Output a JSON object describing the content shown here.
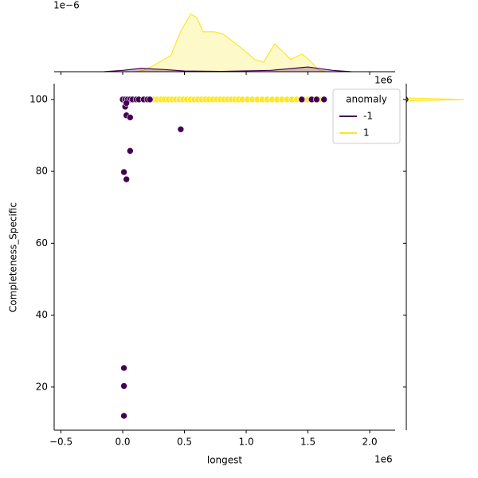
{
  "chart_data": [
    {
      "type": "scatter",
      "x_label": "longest",
      "y_label": "Completeness_Specific",
      "x_offset_label": "1e6",
      "xlim": [
        -555000,
        2206000
      ],
      "ylim": [
        8,
        104.4
      ],
      "xticks": [
        {
          "value": -500000,
          "label": "−0.5"
        },
        {
          "value": 0,
          "label": "0.0"
        },
        {
          "value": 500000,
          "label": "0.5"
        },
        {
          "value": 1000000,
          "label": "1.0"
        },
        {
          "value": 1500000,
          "label": "1.5"
        },
        {
          "value": 2000000,
          "label": "2.0"
        }
      ],
      "yticks": [
        20,
        40,
        60,
        80,
        100
      ],
      "legend": {
        "title": "anomaly",
        "corner": "upper right"
      },
      "series": [
        {
          "name": "1",
          "color": "#fde725",
          "x": [
            30000,
            100000,
            150000,
            180000,
            210000,
            250000,
            280000,
            310000,
            340000,
            370000,
            400000,
            430000,
            460000,
            490000,
            520000,
            550000,
            580000,
            610000,
            640000,
            670000,
            700000,
            730000,
            760000,
            790000,
            820000,
            850000,
            880000,
            910000,
            940000,
            970000,
            1010000,
            1050000,
            1090000,
            1130000,
            1170000,
            1210000,
            1250000,
            1290000,
            1330000,
            1370000,
            1410000,
            1440000,
            1470000,
            1500000,
            1550000,
            1590000
          ],
          "y": [
            100,
            100,
            100,
            100,
            100,
            100,
            100,
            100,
            100,
            100,
            100,
            100,
            100,
            100,
            100,
            100,
            100,
            100,
            100,
            100,
            100,
            100,
            100,
            100,
            100,
            100,
            100,
            100,
            100,
            100,
            100,
            100,
            100,
            100,
            100,
            100,
            100,
            100,
            100,
            100,
            100,
            100,
            100,
            100,
            100,
            100
          ]
        },
        {
          "name": "-1",
          "color": "#440154",
          "x": [
            0,
            20000,
            40000,
            60000,
            80000,
            110000,
            130000,
            170000,
            200000,
            220000,
            1450000,
            1530000,
            1570000,
            1630000,
            20000,
            30000,
            30000,
            60000,
            60000,
            470000,
            10000,
            30000,
            10000,
            10000,
            10000
          ],
          "y": [
            100,
            100,
            100,
            100,
            100,
            100,
            100,
            100,
            100,
            100,
            100,
            100,
            100,
            100,
            98,
            99,
            95.6,
            95,
            85.7,
            91.7,
            79.8,
            77.8,
            25.3,
            20.3,
            12
          ]
        }
      ]
    },
    {
      "type": "kde-top",
      "offset_label": "1e−6",
      "ylim": [
        0,
        1.0
      ],
      "series": [
        {
          "color": "#fde725",
          "x": [
            100000,
            170000,
            260000,
            390000,
            470000,
            550000,
            600000,
            650000,
            740000,
            810000,
            940000,
            1070000,
            1140000,
            1230000,
            1300000,
            1360000,
            1450000,
            1490000,
            1590000,
            1650000
          ],
          "values": [
            0,
            0.02,
            0.1,
            0.24,
            0.6,
            0.85,
            0.8,
            0.59,
            0.59,
            0.56,
            0.38,
            0.18,
            0.14,
            0.41,
            0.29,
            0.18,
            0.26,
            0.21,
            0.02,
            0
          ]
        },
        {
          "color": "#440154",
          "x": [
            -150000,
            0,
            150000,
            350000,
            500000,
            800000,
            1200000,
            1500000,
            1700000,
            1850000
          ],
          "values": [
            0,
            0.02,
            0.05,
            0.03,
            0.01,
            0.005,
            0.02,
            0.07,
            0.02,
            0
          ]
        }
      ]
    },
    {
      "type": "kde-right",
      "xlim": [
        0,
        1.1
      ],
      "series": [
        {
          "color": "#fde725",
          "y": [
            99.6,
            100,
            100.4
          ],
          "values": [
            0,
            0.99,
            0
          ]
        },
        {
          "color": "#440154",
          "y": [
            99.2,
            100,
            100.8
          ],
          "values": [
            0,
            0.03,
            0
          ]
        }
      ]
    }
  ]
}
